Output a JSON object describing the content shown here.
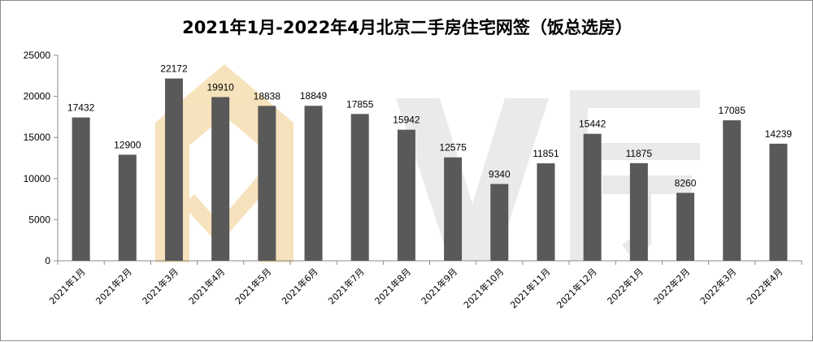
{
  "chart_data": {
    "type": "bar",
    "title": "2021年1月-2022年4月北京二手房住宅网签（饭总选房）",
    "categories": [
      "2021年1月",
      "2021年2月",
      "2021年3月",
      "2021年4月",
      "2021年5月",
      "2021年6月",
      "2021年7月",
      "2021年8月",
      "2021年9月",
      "2021年10月",
      "2021年11月",
      "2021年12月",
      "2022年1月",
      "2022年2月",
      "2022年3月",
      "2022年4月"
    ],
    "values": [
      17432,
      12900,
      22172,
      19910,
      18838,
      18849,
      17855,
      15942,
      12575,
      9340,
      11851,
      15442,
      11875,
      8260,
      17085,
      14239
    ],
    "ylim": [
      0,
      25000
    ],
    "yticks": [
      0,
      5000,
      10000,
      15000,
      20000,
      25000
    ],
    "grid": false,
    "legend": "none",
    "bar_color": "#595959",
    "watermark_color": "#f5deb0"
  }
}
